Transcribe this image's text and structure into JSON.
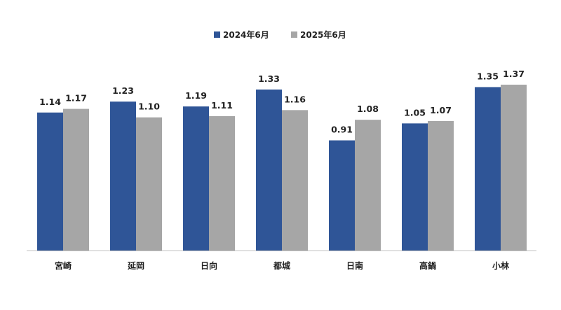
{
  "chart_data": {
    "type": "bar",
    "categories": [
      "宮崎",
      "延岡",
      "日向",
      "都城",
      "日南",
      "高鍋",
      "小林"
    ],
    "series": [
      {
        "name": "2024年6月",
        "color": "#2F5597",
        "values": [
          1.14,
          1.23,
          1.19,
          1.33,
          0.91,
          1.05,
          1.35
        ],
        "labels": [
          "1.14",
          "1.23",
          "1.19",
          "1.33",
          "0.91",
          "1.05",
          "1.35"
        ]
      },
      {
        "name": "2025年6月",
        "color": "#A6A6A6",
        "values": [
          1.17,
          1.1,
          1.11,
          1.16,
          1.08,
          1.07,
          1.37
        ],
        "labels": [
          "1.17",
          "1.10",
          "1.11",
          "1.16",
          "1.08",
          "1.07",
          "1.37"
        ]
      }
    ],
    "ylim": [
      0,
      1.37
    ],
    "grid": false,
    "legend_position": "top-center",
    "axis_color": "#BFBFBF"
  }
}
